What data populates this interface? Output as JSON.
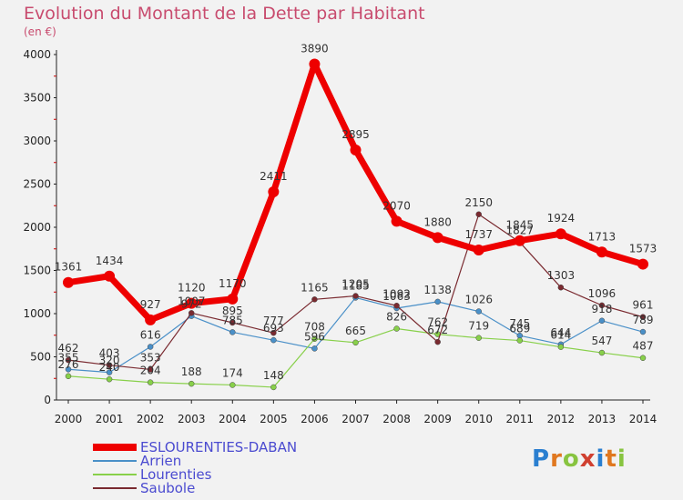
{
  "title": "Evolution du Montant de la Dette par Habitant",
  "subtitle": "(en €)",
  "brand": "Proxiti",
  "chart_data": {
    "type": "line",
    "title": "Evolution du Montant de la Dette par Habitant",
    "subtitle": "(en €)",
    "x": [
      "2000",
      "2001",
      "2002",
      "2003",
      "2004",
      "2005",
      "2006",
      "2007",
      "2008",
      "2009",
      "2010",
      "2011",
      "2012",
      "2013",
      "2014"
    ],
    "y_ticks": [
      "0",
      "500",
      "1000",
      "1500",
      "2000",
      "2500",
      "3000",
      "3500",
      "4000"
    ],
    "ylim": [
      0,
      4000
    ],
    "grid": false,
    "legend_position": "bottom-left",
    "series": [
      {
        "name": "ESLOURENTIES-DABAN",
        "color": "#ee0000",
        "values": [
          1361,
          1434,
          927,
          1120,
          1170,
          2411,
          3890,
          2895,
          2070,
          1880,
          1737,
          1845,
          1924,
          1713,
          1573
        ],
        "labels": [
          "1361",
          "1434",
          "927",
          "1120",
          "1170",
          "2411",
          "3890",
          "2895",
          "2070",
          "1880",
          "1737",
          "1845",
          "1924",
          "1713",
          "1573"
        ]
      },
      {
        "name": "Arrien",
        "color": "#4a90c8",
        "values": [
          355,
          320,
          616,
          972,
          785,
          693,
          596,
          1185,
          1063,
          1138,
          1026,
          745,
          644,
          918,
          789
        ],
        "labels": [
          "355",
          "320",
          "616",
          "972",
          "785",
          "693",
          "596",
          "1185",
          "1063",
          "1138",
          "1026",
          "745",
          "644",
          "918",
          "789"
        ]
      },
      {
        "name": "Lourenties",
        "color": "#88d04a",
        "values": [
          276,
          240,
          204,
          188,
          174,
          148,
          708,
          665,
          826,
          762,
          719,
          689,
          614,
          547,
          487
        ],
        "labels": [
          "276",
          "240",
          "204",
          "188",
          "174",
          "148",
          "708",
          "665",
          "826",
          "762",
          "719",
          "689",
          "614",
          "547",
          "487"
        ]
      },
      {
        "name": "Saubole",
        "color": "#7a2a30",
        "values": [
          462,
          403,
          353,
          1007,
          895,
          777,
          1165,
          1205,
          1092,
          672,
          2150,
          1827,
          1303,
          1096,
          961
        ],
        "labels": [
          "462",
          "403",
          "353",
          "1007",
          "895",
          "777",
          "1165",
          "1205",
          "1092",
          "672",
          "2150",
          "1827",
          "1303",
          "1096",
          "961"
        ]
      }
    ]
  }
}
